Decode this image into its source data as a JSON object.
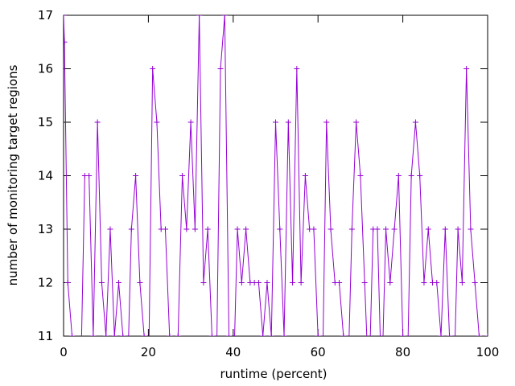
{
  "chart_data": {
    "type": "line",
    "title": "",
    "xlabel": "runtime (percent)",
    "ylabel": "number of monitoring target regions",
    "xlim": [
      0,
      100
    ],
    "ylim": [
      11,
      17
    ],
    "x_ticks": [
      0,
      20,
      40,
      60,
      80,
      100
    ],
    "y_ticks": [
      11,
      12,
      13,
      14,
      15,
      16,
      17
    ],
    "x_tick_labels": [
      "0",
      "20",
      "40",
      "60",
      "80",
      "100"
    ],
    "y_tick_labels": [
      "11",
      "12",
      "13",
      "14",
      "15",
      "16",
      "17"
    ],
    "grid": false,
    "legend": "none",
    "line_color": "#9400d3",
    "marker": "plus",
    "series": [
      {
        "x": [
          0,
          0.2,
          1,
          2,
          3,
          4,
          5,
          6,
          7,
          8,
          9,
          10,
          11,
          12,
          13,
          14,
          15,
          16,
          17,
          18,
          19,
          20,
          21,
          22,
          23,
          24,
          25,
          26,
          27,
          28,
          29,
          30,
          31,
          32,
          33,
          34,
          35,
          36,
          37,
          38,
          39,
          40,
          41,
          42,
          43,
          44,
          45,
          46,
          47,
          48,
          49,
          50,
          51,
          52,
          53,
          54,
          55,
          56,
          57,
          58,
          59,
          60,
          61,
          62,
          63,
          64,
          65,
          66,
          67,
          68,
          69,
          70,
          71,
          72,
          73,
          74,
          75,
          76,
          77,
          78,
          79,
          80,
          81,
          82,
          83,
          84,
          85,
          86,
          87,
          88,
          89,
          90,
          91,
          92,
          93,
          94,
          95,
          96,
          97,
          98,
          99,
          100
        ],
        "y": [
          17,
          16.5,
          12,
          11,
          10,
          10,
          14,
          14,
          11,
          15,
          12,
          11,
          13,
          11,
          12,
          11,
          10,
          13,
          14,
          12,
          11,
          10,
          16,
          15,
          13,
          13,
          11,
          10,
          11,
          14,
          13,
          15,
          13,
          17,
          12,
          13,
          11,
          10,
          16,
          17,
          11,
          10,
          13,
          12,
          13,
          12,
          12,
          12,
          11,
          12,
          11,
          15,
          13,
          11,
          15,
          12,
          16,
          12,
          14,
          13,
          13,
          11,
          10,
          15,
          13,
          12,
          12,
          11,
          10,
          13,
          15,
          14,
          12,
          10,
          13,
          13,
          10,
          13,
          12,
          13,
          14,
          11,
          10,
          14,
          15,
          14,
          12,
          13,
          12,
          12,
          11,
          13,
          11,
          10,
          13,
          12,
          16,
          13,
          12,
          11,
          10,
          11
        ]
      }
    ]
  }
}
